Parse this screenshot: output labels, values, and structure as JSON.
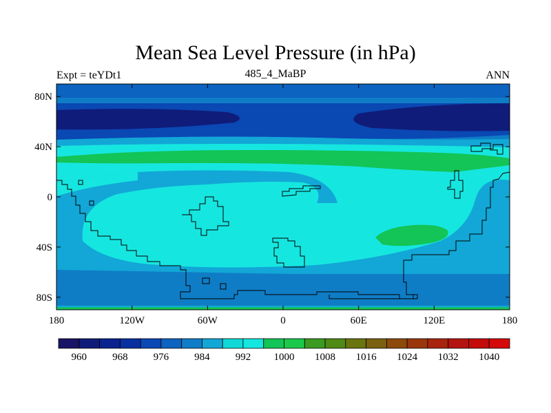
{
  "title": "Mean Sea Level Pressure (in hPa)",
  "left_label": "Expt = teYDt1",
  "center_label": "485_4_MaBP",
  "right_label": "ANN",
  "lat_ticks": [
    {
      "value": 80,
      "label": "80N"
    },
    {
      "value": 40,
      "label": "40N"
    },
    {
      "value": 0,
      "label": "0"
    },
    {
      "value": -40,
      "label": "40S"
    },
    {
      "value": -80,
      "label": "80S"
    }
  ],
  "lon_ticks": [
    {
      "value": -180,
      "label": "180"
    },
    {
      "value": -120,
      "label": "120W"
    },
    {
      "value": -60,
      "label": "60W"
    },
    {
      "value": 0,
      "label": "0"
    },
    {
      "value": 60,
      "label": "60E"
    },
    {
      "value": 120,
      "label": "120E"
    },
    {
      "value": 180,
      "label": "180"
    }
  ],
  "colorbar": {
    "colors": [
      "#1a1466",
      "#101c7a",
      "#0a238e",
      "#0830a0",
      "#0a48b4",
      "#0c63c0",
      "#0f7dc6",
      "#12a7d6",
      "#10d8d8",
      "#16e6e0",
      "#13c456",
      "#1bc94a",
      "#3a9b20",
      "#4e8a14",
      "#6a7510",
      "#7a6010",
      "#8c4a0c",
      "#9a360c",
      "#a8240e",
      "#b41410",
      "#c40a0a",
      "#d40a0a"
    ],
    "labels": [
      "960",
      "968",
      "976",
      "984",
      "992",
      "1000",
      "1008",
      "1016",
      "1024",
      "1032",
      "1040"
    ]
  },
  "levels": {
    "deep": "#101c7a",
    "dark": "#0a48b4",
    "mid": "#0f7dc6",
    "light": "#12a7d6",
    "cyan": "#16e6e0",
    "green": "#13c456"
  }
}
